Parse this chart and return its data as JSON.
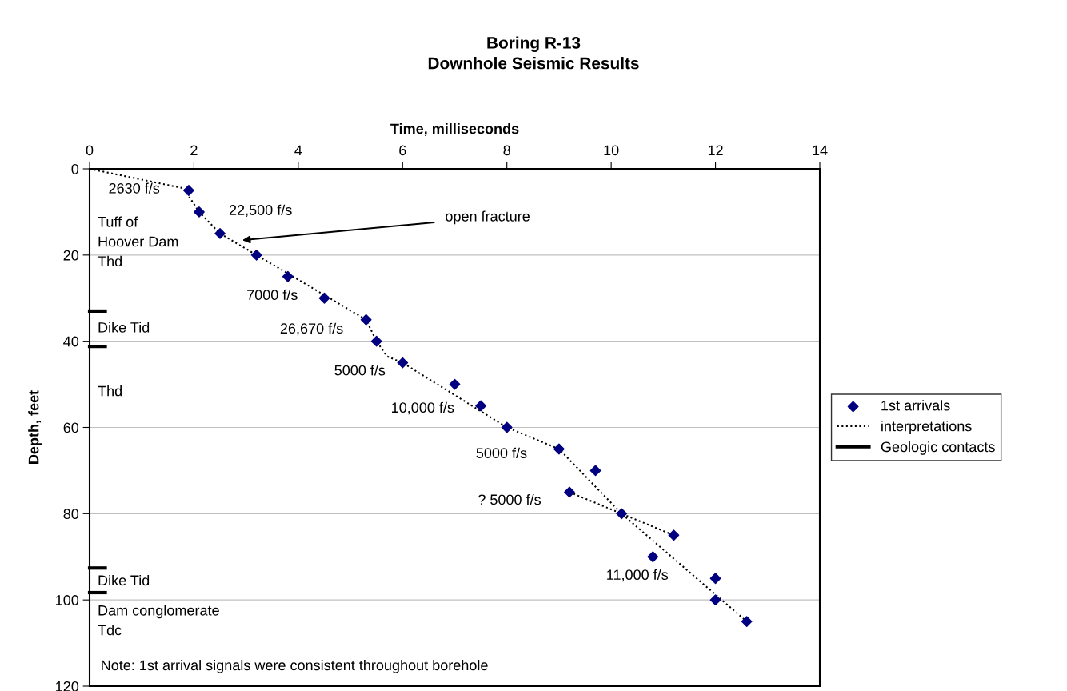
{
  "chart_data": {
    "type": "scatter",
    "title": "Boring R-13\nDownhole Seismic Results",
    "xlabel": "Time, milliseconds",
    "ylabel": "Depth, feet",
    "xlim": [
      0,
      14
    ],
    "xticks": [
      0,
      2,
      4,
      6,
      8,
      10,
      12,
      14
    ],
    "ylim": [
      120,
      0
    ],
    "yticks": [
      0,
      20,
      40,
      60,
      80,
      100,
      120
    ],
    "grid": "y",
    "legend": "right",
    "series": [
      {
        "name": "1st arrivals",
        "marker": "diamond",
        "color": "#000080",
        "x": [
          1.9,
          2.1,
          2.5,
          3.2,
          3.8,
          4.5,
          5.3,
          5.5,
          6.0,
          7.0,
          7.5,
          8.0,
          9.0,
          9.7,
          9.2,
          10.2,
          11.2,
          10.8,
          12.0,
          12.0,
          12.6
        ],
        "values": [
          5,
          10,
          15,
          20,
          25,
          30,
          35,
          40,
          45,
          50,
          55,
          60,
          65,
          70,
          75,
          80,
          85,
          90,
          95,
          100,
          105
        ]
      },
      {
        "name": "interpretations",
        "type": "line",
        "line_style": "dotted",
        "marker": "none",
        "color": "#000000",
        "x": [
          0,
          1.8,
          2.1,
          2.5,
          5.3,
          5.5,
          5.7,
          6.0,
          8.0,
          9.0,
          10.2,
          12.6
        ],
        "values": [
          0,
          4.5,
          10,
          15,
          35,
          40,
          43.5,
          45,
          60,
          65,
          80,
          105
        ]
      },
      {
        "type": "line",
        "line_style": "dotted",
        "marker": "none",
        "color": "#000000",
        "x": [
          9.2,
          10.2,
          11.2
        ],
        "values": [
          75,
          80,
          85
        ]
      },
      {
        "name": "Geologic contacts",
        "type": "line",
        "line_style": "solid",
        "marker": "none",
        "color": "#000000",
        "x": [
          0,
          0.3
        ],
        "values": [
          33,
          33
        ]
      },
      {
        "type": "line",
        "line_style": "solid",
        "marker": "none",
        "color": "#000000",
        "x": [
          0,
          0.3
        ],
        "values": [
          41.2,
          41.2
        ]
      },
      {
        "type": "line",
        "line_style": "solid",
        "marker": "none",
        "color": "#000000",
        "x": [
          0,
          0.3
        ],
        "values": [
          92.6,
          92.6
        ]
      },
      {
        "type": "line",
        "line_style": "solid",
        "marker": "none",
        "color": "#000000",
        "x": [
          0,
          0.3
        ],
        "values": [
          98.3,
          98.3
        ]
      }
    ],
    "annotations": [
      "2630 f/s",
      "22,500 f/s",
      "7000 f/s",
      "26,670 f/s",
      "5000 f/s",
      "10,000 f/s",
      "5000 f/s",
      "? 5000 f/s",
      "11,000 f/s",
      "open fracture",
      "Tuff of\nHoover Dam\nThd",
      "Dike Tid",
      "Thd",
      "Dike Tid",
      "Dam conglomerate\nTdc",
      "Note: 1st arrival signals were consistent throughout borehole"
    ]
  }
}
